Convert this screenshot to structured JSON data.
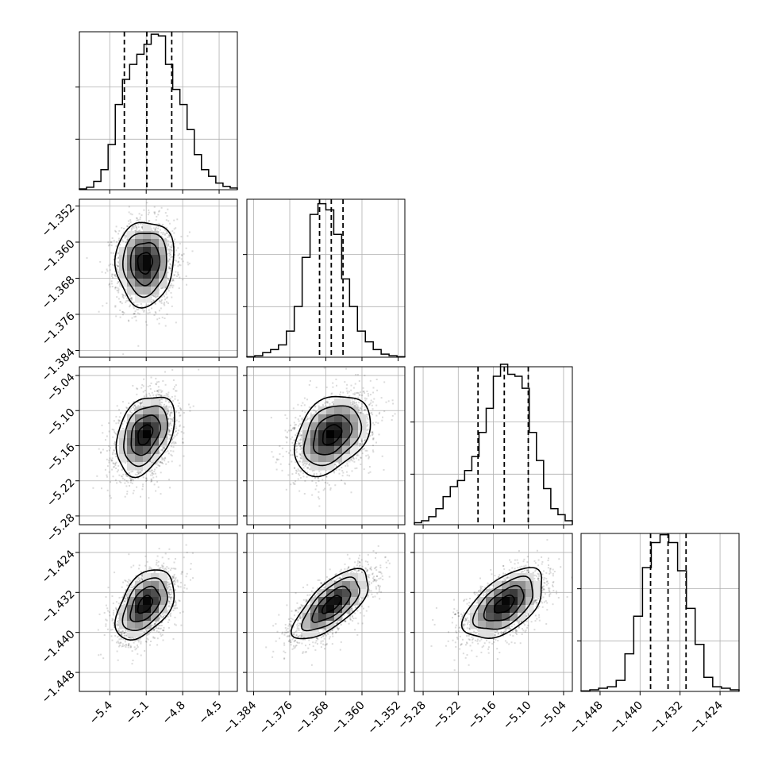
{
  "chart_data": {
    "type": "corner",
    "params": [
      {
        "range": [
          -5.65,
          -4.35
        ],
        "ticks": [
          "−5.4",
          "−5.1",
          "−4.8",
          "−4.5"
        ],
        "tick_values": [
          -5.4,
          -5.1,
          -4.8,
          -4.5
        ],
        "quantiles": [
          -5.28,
          -5.095,
          -4.89
        ],
        "hist_bins": [
          0.5,
          1.5,
          5,
          12,
          27,
          51,
          66,
          75,
          81,
          87,
          93,
          92,
          75,
          60,
          51,
          36,
          21,
          12,
          8,
          4,
          2,
          1
        ],
        "hist_max": 90
      },
      {
        "range": [
          -1.3855,
          -1.3505
        ],
        "ticks": [
          "−1.384",
          "−1.376",
          "−1.368",
          "−1.360",
          "−1.352"
        ],
        "tick_values": [
          -1.384,
          -1.376,
          -1.368,
          -1.36,
          -1.352
        ],
        "quantiles": [
          -1.3694,
          -1.3668,
          -1.3642
        ],
        "hist_bins": [
          0.3,
          1,
          3,
          5,
          8,
          17,
          33,
          65,
          93,
          100,
          96,
          80,
          51,
          33,
          17,
          10,
          5,
          2,
          1,
          0.3
        ],
        "hist_max": 98
      },
      {
        "range": [
          -5.295,
          -5.025
        ],
        "ticks": [
          "−5.28",
          "−5.22",
          "−5.16",
          "−5.10",
          "−5.04"
        ],
        "tick_values": [
          -5.28,
          -5.22,
          -5.16,
          -5.1,
          -5.04
        ],
        "quantiles": [
          -5.1862,
          -5.1413,
          -5.1003
        ],
        "hist_bins": [
          1,
          2,
          4,
          8,
          14,
          19,
          22,
          27,
          34,
          46,
          58,
          74,
          80,
          75,
          74,
          68,
          46,
          32,
          18,
          8,
          5,
          2
        ],
        "hist_max": 75
      },
      {
        "range": [
          -1.4518,
          -1.4202
        ],
        "ticks": [
          "−1.448",
          "−1.440",
          "−1.432",
          "−1.424"
        ],
        "tick_values": [
          -1.448,
          -1.44,
          -1.432,
          -1.424
        ],
        "quantiles": [
          -1.4379,
          -1.4344,
          -1.4308
        ],
        "hist_bins": [
          0.3,
          1,
          2,
          3,
          7,
          24,
          48,
          79,
          95,
          100,
          95,
          77,
          53,
          30,
          9,
          3,
          2,
          1
        ],
        "hist_max": 96
      }
    ],
    "pairs": [
      {
        "row": 1,
        "col": 0,
        "center": [
          -5.11,
          -1.3646
        ],
        "sigma": [
          0.12,
          0.0047
        ],
        "rho": 0.05
      },
      {
        "row": 2,
        "col": 0,
        "center": [
          -5.11,
          -5.141
        ],
        "sigma": [
          0.12,
          0.034
        ],
        "rho": 0.35
      },
      {
        "row": 2,
        "col": 1,
        "center": [
          -1.3667,
          -5.141
        ],
        "sigma": [
          0.0042,
          0.034
        ],
        "rho": 0.35
      },
      {
        "row": 3,
        "col": 0,
        "center": [
          -5.11,
          -1.4344
        ],
        "sigma": [
          0.12,
          0.0035
        ],
        "rho": 0.45
      },
      {
        "row": 3,
        "col": 1,
        "center": [
          -1.3667,
          -1.4344
        ],
        "sigma": [
          0.0042,
          0.0035
        ],
        "rho": 0.7
      },
      {
        "row": 3,
        "col": 2,
        "center": [
          -5.141,
          -1.4344
        ],
        "sigma": [
          0.034,
          0.0035
        ],
        "rho": 0.55
      }
    ],
    "xlabel": "",
    "ylabel": "",
    "title": "",
    "grid": true,
    "contour_levels": [
      0.5,
      1.0,
      1.5,
      2.0
    ]
  }
}
